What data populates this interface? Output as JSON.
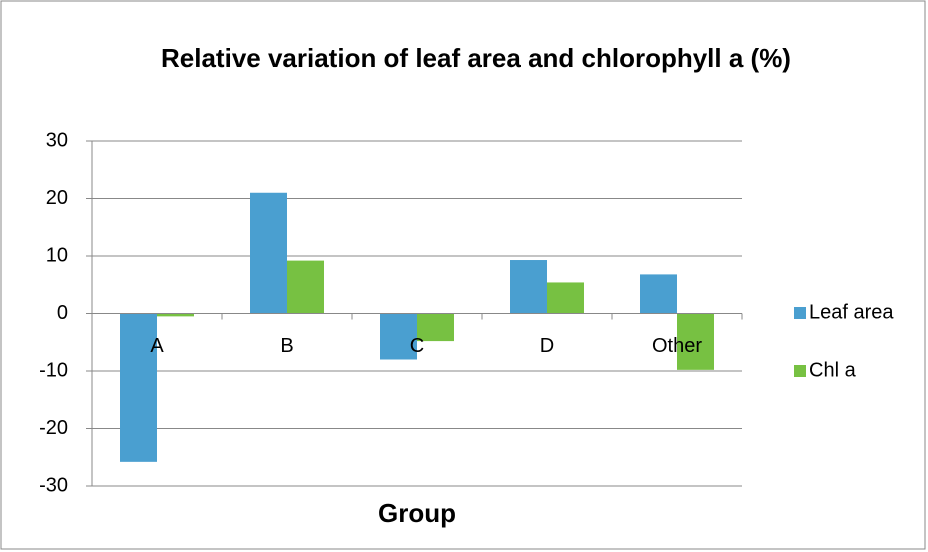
{
  "chart_data": {
    "type": "bar",
    "title": "Relative variation of leaf area and chlorophyll a (%)",
    "x_label": "Group",
    "categories": [
      "A",
      "B",
      "C",
      "D",
      "Other"
    ],
    "series": [
      {
        "name": "Leaf area",
        "color": "#4a9fd0",
        "values": [
          -25.8,
          21,
          -8,
          9.3,
          6.8
        ]
      },
      {
        "name": "Chl a",
        "color": "#77c142",
        "values": [
          -0.5,
          9.2,
          -4.8,
          5.4,
          -9.8
        ]
      }
    ],
    "ylim": [
      -30,
      30
    ],
    "yticks": [
      -30,
      -20,
      -10,
      0,
      10,
      20,
      30
    ],
    "grid": true,
    "legend": "right"
  }
}
